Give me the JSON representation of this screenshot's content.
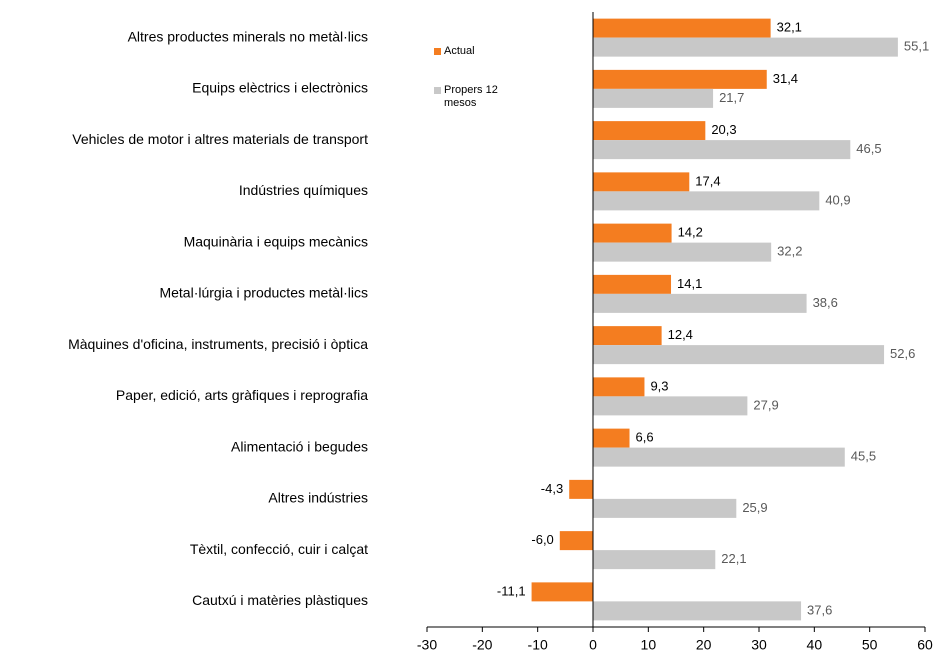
{
  "chart_data": {
    "type": "bar",
    "orientation": "horizontal",
    "categories": [
      "Altres productes minerals no metàl·lics",
      "Equips elèctrics i electrònics",
      "Vehicles de motor i altres materials de transport",
      "Indústries químiques",
      "Maquinària i equips mecànics",
      "Metal·lúrgia i productes metàl·lics",
      "Màquines d'oficina, instruments, precisió i òptica",
      "Paper, edició, arts gràfiques i reprografia",
      "Alimentació i begudes",
      "Altres indústries",
      "Tèxtil, confecció, cuir i calçat",
      "Cautxú i matèries plàstiques"
    ],
    "series": [
      {
        "name": "Actual",
        "color": "#f47d20",
        "values": [
          32.1,
          31.4,
          20.3,
          17.4,
          14.2,
          14.1,
          12.4,
          9.3,
          6.6,
          -4.3,
          -6.0,
          -11.1
        ],
        "value_labels": [
          "32,1",
          "31,4",
          "20,3",
          "17,4",
          "14,2",
          "14,1",
          "12,4",
          "9,3",
          "6,6",
          "-4,3",
          "-6,0",
          "-11,1"
        ]
      },
      {
        "name": "Propers 12 mesos",
        "color": "#c8c8c8",
        "values": [
          55.1,
          21.7,
          46.5,
          40.9,
          32.2,
          38.6,
          52.6,
          27.9,
          45.5,
          25.9,
          22.1,
          37.6
        ],
        "value_labels": [
          "55,1",
          "21,7",
          "46,5",
          "40,9",
          "32,2",
          "38,6",
          "52,6",
          "27,9",
          "45,5",
          "25,9",
          "22,1",
          "37,6"
        ]
      }
    ],
    "xlim": [
      -30,
      60
    ],
    "xticks": [
      -30,
      -20,
      -10,
      0,
      10,
      20,
      30,
      40,
      50,
      60
    ],
    "legend": "upper-left"
  }
}
